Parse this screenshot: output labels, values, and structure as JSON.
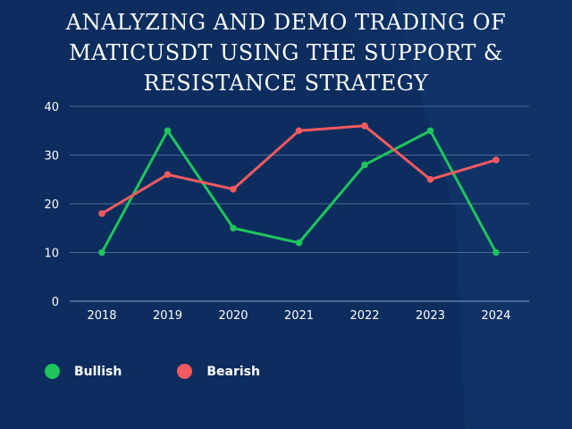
{
  "chart_data": {
    "type": "line",
    "title_lines": [
      "ANALYZING AND DEMO TRADING OF",
      "MATICUSDT USING THE SUPPORT &",
      "RESISTANCE STRATEGY"
    ],
    "categories": [
      "2018",
      "2019",
      "2020",
      "2021",
      "2022",
      "2023",
      "2024"
    ],
    "series": [
      {
        "name": "Bullish",
        "color": "#1fc45c",
        "values": [
          10,
          35,
          15,
          12,
          28,
          35,
          10
        ]
      },
      {
        "name": "Bearish",
        "color": "#f25a60",
        "values": [
          18,
          26,
          23,
          35,
          36,
          25,
          29
        ]
      }
    ],
    "ylim": [
      0,
      40
    ],
    "yticks": [
      0,
      10,
      20,
      30,
      40
    ],
    "xlabel": "",
    "ylabel": "",
    "grid": true,
    "legend_position": "bottom-left"
  },
  "colors": {
    "background": "#0c2d5e",
    "grid": "#4d6a96",
    "text": "#ffffff"
  }
}
